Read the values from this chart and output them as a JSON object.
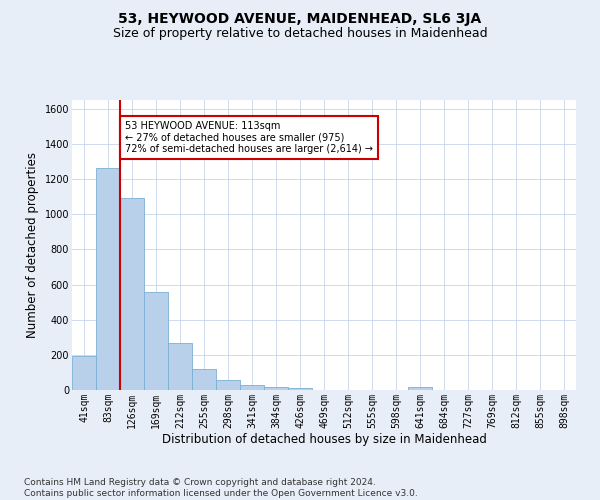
{
  "title": "53, HEYWOOD AVENUE, MAIDENHEAD, SL6 3JA",
  "subtitle": "Size of property relative to detached houses in Maidenhead",
  "xlabel": "Distribution of detached houses by size in Maidenhead",
  "ylabel": "Number of detached properties",
  "footer": "Contains HM Land Registry data © Crown copyright and database right 2024.\nContains public sector information licensed under the Open Government Licence v3.0.",
  "categories": [
    "41sqm",
    "83sqm",
    "126sqm",
    "169sqm",
    "212sqm",
    "255sqm",
    "298sqm",
    "341sqm",
    "384sqm",
    "426sqm",
    "469sqm",
    "512sqm",
    "555sqm",
    "598sqm",
    "641sqm",
    "684sqm",
    "727sqm",
    "769sqm",
    "812sqm",
    "855sqm",
    "898sqm"
  ],
  "values": [
    196,
    1262,
    1092,
    560,
    265,
    122,
    56,
    30,
    18,
    12,
    0,
    0,
    0,
    0,
    18,
    0,
    0,
    0,
    0,
    0,
    0
  ],
  "bar_color": "#b8d0ea",
  "bar_edge_color": "#7aafd4",
  "vline_color": "#cc0000",
  "annotation_text": "53 HEYWOOD AVENUE: 113sqm\n← 27% of detached houses are smaller (975)\n72% of semi-detached houses are larger (2,614) →",
  "annotation_box_color": "#ffffff",
  "annotation_box_edge": "#cc0000",
  "ylim": [
    0,
    1650
  ],
  "yticks": [
    0,
    200,
    400,
    600,
    800,
    1000,
    1200,
    1400,
    1600
  ],
  "bg_color": "#e8eef8",
  "plot_bg_color": "#ffffff",
  "grid_color": "#c8d4e8",
  "title_fontsize": 10,
  "subtitle_fontsize": 9,
  "label_fontsize": 8.5,
  "tick_fontsize": 7,
  "footer_fontsize": 6.5
}
